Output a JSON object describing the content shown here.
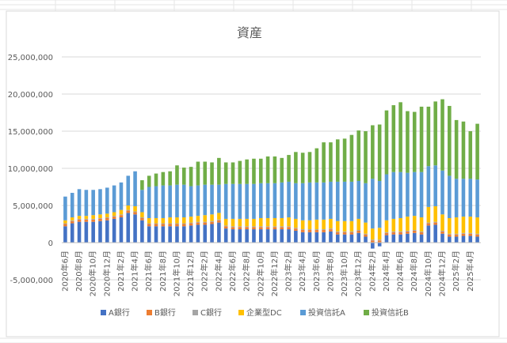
{
  "chart_data": {
    "type": "bar",
    "stacked": true,
    "title": "資産",
    "ylim": [
      -5000000,
      25000000
    ],
    "yticks": [
      "-5,000,000",
      "0",
      "5,000,000",
      "10,000,000",
      "15,000,000",
      "20,000,000",
      "25,000,000"
    ],
    "ytick_values": [
      -5000000,
      0,
      5000000,
      10000000,
      15000000,
      20000000,
      25000000
    ],
    "grid": true,
    "legend_position": "bottom",
    "xtick_labels": [
      "2020年6月",
      "2020年8月",
      "2020年10月",
      "2020年12月",
      "2021年2月",
      "2021年4月",
      "2021年6月",
      "2021年8月",
      "2021年10月",
      "2021年12月",
      "2022年2月",
      "2022年4月",
      "2022年6月",
      "2022年8月",
      "2022年10月",
      "2022年12月",
      "2023年2月",
      "2023年4月",
      "2023年6月",
      "2023年8月",
      "2023年10月",
      "2023年12月",
      "2024年2月",
      "2024年4月",
      "2024年6月",
      "2024年8月",
      "2024年10月",
      "2024年12月",
      "2025年2月",
      "2025年4月"
    ],
    "categories": [
      "2020年6月",
      "2020年7月",
      "2020年8月",
      "2020年9月",
      "2020年10月",
      "2020年11月",
      "2020年12月",
      "2021年1月",
      "2021年2月",
      "2021年3月",
      "2021年4月",
      "2021年5月",
      "2021年6月",
      "2021年7月",
      "2021年8月",
      "2021年9月",
      "2021年10月",
      "2021年11月",
      "2021年12月",
      "2022年1月",
      "2022年2月",
      "2022年3月",
      "2022年4月",
      "2022年5月",
      "2022年6月",
      "2022年7月",
      "2022年8月",
      "2022年9月",
      "2022年10月",
      "2022年11月",
      "2022年12月",
      "2023年1月",
      "2023年2月",
      "2023年3月",
      "2023年4月",
      "2023年5月",
      "2023年6月",
      "2023年7月",
      "2023年8月",
      "2023年9月",
      "2023年10月",
      "2023年11月",
      "2023年12月",
      "2024年1月",
      "2024年2月",
      "2024年3月",
      "2024年4月",
      "2024年5月",
      "2024年6月",
      "2024年7月",
      "2024年8月",
      "2024年9月",
      "2024年10月",
      "2024年11月",
      "2024年12月",
      "2025年1月",
      "2025年2月",
      "2025年3月",
      "2025年4月",
      "2025年5月"
    ],
    "series": [
      {
        "name": "A銀行",
        "color": "#4472C4",
        "values": [
          2200000,
          2600000,
          2800000,
          2800000,
          2800000,
          2900000,
          3000000,
          3200000,
          3400000,
          4000000,
          3800000,
          3000000,
          2200000,
          2200000,
          2200000,
          2200000,
          2200000,
          2200000,
          2300000,
          2400000,
          2400000,
          2500000,
          2700000,
          1900000,
          1800000,
          1800000,
          1800000,
          1800000,
          1800000,
          1800000,
          1800000,
          1800000,
          1800000,
          1600000,
          1400000,
          1400000,
          1400000,
          1400000,
          1500000,
          1100000,
          1100000,
          1100000,
          1300000,
          800000,
          -800000,
          -500000,
          1000000,
          1100000,
          1100000,
          1200000,
          1300000,
          1100000,
          2300000,
          2400000,
          1200000,
          800000,
          800000,
          900000,
          900000,
          800000
        ]
      },
      {
        "name": "B銀行",
        "color": "#ED7D31",
        "values": [
          300000,
          300000,
          300000,
          300000,
          300000,
          300000,
          300000,
          300000,
          300000,
          300000,
          300000,
          300000,
          300000,
          300000,
          300000,
          300000,
          300000,
          300000,
          300000,
          300000,
          300000,
          300000,
          300000,
          300000,
          300000,
          300000,
          300000,
          300000,
          300000,
          300000,
          300000,
          300000,
          300000,
          300000,
          300000,
          300000,
          300000,
          300000,
          300000,
          300000,
          300000,
          300000,
          300000,
          300000,
          300000,
          300000,
          300000,
          300000,
          300000,
          300000,
          300000,
          300000,
          300000,
          300000,
          300000,
          300000,
          300000,
          300000,
          300000,
          300000
        ]
      },
      {
        "name": "C銀行",
        "color": "#A5A5A5",
        "values": [
          100000,
          100000,
          100000,
          100000,
          100000,
          100000,
          100000,
          100000,
          100000,
          100000,
          100000,
          100000,
          100000,
          100000,
          100000,
          100000,
          100000,
          100000,
          100000,
          100000,
          100000,
          100000,
          100000,
          100000,
          100000,
          100000,
          100000,
          100000,
          100000,
          100000,
          100000,
          100000,
          100000,
          100000,
          100000,
          100000,
          100000,
          100000,
          100000,
          100000,
          100000,
          100000,
          100000,
          100000,
          100000,
          100000,
          100000,
          100000,
          100000,
          100000,
          100000,
          100000,
          100000,
          100000,
          100000,
          100000,
          100000,
          100000,
          100000,
          100000
        ]
      },
      {
        "name": "企業型DC",
        "color": "#FFC000",
        "values": [
          400000,
          400000,
          400000,
          400000,
          500000,
          500000,
          500000,
          500000,
          600000,
          600000,
          700000,
          700000,
          700000,
          700000,
          700000,
          800000,
          800000,
          800000,
          800000,
          800000,
          900000,
          900000,
          900000,
          900000,
          1000000,
          1000000,
          1000000,
          1000000,
          1100000,
          1100000,
          1100000,
          1100000,
          1200000,
          1200000,
          1200000,
          1200000,
          1300000,
          1300000,
          1300000,
          1400000,
          1400000,
          1400000,
          1500000,
          1500000,
          1500000,
          1600000,
          1600000,
          1700000,
          1800000,
          1900000,
          1900000,
          1900000,
          2100000,
          2100000,
          2200000,
          2100000,
          2200000,
          2200000,
          2200000,
          2200000
        ]
      },
      {
        "name": "投資信託A",
        "color": "#5B9BD5",
        "values": [
          3200000,
          3300000,
          3600000,
          3500000,
          3400000,
          3400000,
          3500000,
          3600000,
          3700000,
          4000000,
          4700000,
          3000000,
          4200000,
          4300000,
          4400000,
          4300000,
          4400000,
          4400000,
          4100000,
          4100000,
          4100000,
          4000000,
          3800000,
          4700000,
          4700000,
          4700000,
          4700000,
          4700000,
          4700000,
          4700000,
          4700000,
          4800000,
          4800000,
          4800000,
          5000000,
          5100000,
          5000000,
          5000000,
          5000000,
          5300000,
          5300000,
          5300000,
          5100000,
          5300000,
          6700000,
          6300000,
          6200000,
          6300000,
          6200000,
          5900000,
          5900000,
          6100000,
          5500000,
          5500000,
          5900000,
          5700000,
          5200000,
          5100000,
          5100000,
          5100000
        ]
      },
      {
        "name": "投資信託B",
        "color": "#70AD47",
        "values": [
          0,
          0,
          0,
          0,
          0,
          0,
          0,
          0,
          0,
          0,
          0,
          1300000,
          1500000,
          1700000,
          1800000,
          1900000,
          2600000,
          2300000,
          2600000,
          3200000,
          3100000,
          3000000,
          3600000,
          2900000,
          2900000,
          3100000,
          3300000,
          3400000,
          3300000,
          3600000,
          3600000,
          3300000,
          3600000,
          4200000,
          4100000,
          4100000,
          4600000,
          5400000,
          5300000,
          5700000,
          5800000,
          6300000,
          6800000,
          7000000,
          7200000,
          7600000,
          8600000,
          9000000,
          9400000,
          8300000,
          8100000,
          8800000,
          8000000,
          8600000,
          9600000,
          9400000,
          7900000,
          7700000,
          6400000,
          7500000
        ]
      }
    ]
  }
}
